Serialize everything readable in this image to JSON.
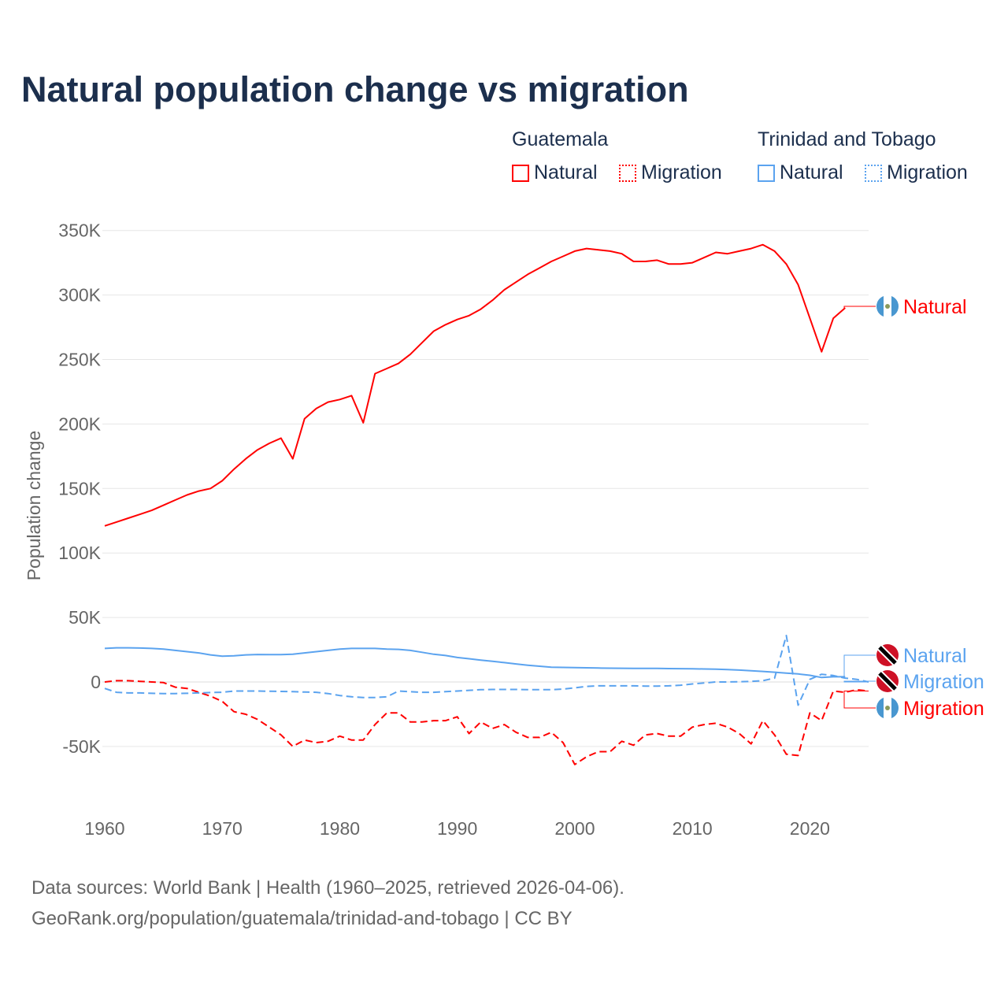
{
  "chart_data": {
    "type": "line",
    "title": "Natural population change vs migration",
    "xlabel": "",
    "ylabel": "Population change",
    "xlim": [
      1960,
      2025
    ],
    "ylim": [
      -100000,
      350000
    ],
    "x_ticks": [
      1960,
      1970,
      1980,
      1990,
      2000,
      2010,
      2020
    ],
    "x_tick_labels": [
      "1960",
      "1970",
      "1980",
      "1990",
      "2000",
      "2010",
      "2020"
    ],
    "y_ticks": [
      -50000,
      0,
      50000,
      100000,
      150000,
      200000,
      250000,
      300000,
      350000
    ],
    "y_tick_labels": [
      "-50K",
      "0",
      "50K",
      "100K",
      "150K",
      "200K",
      "250K",
      "300K",
      "350K"
    ],
    "grid": true,
    "legend": {
      "placement": "top-right",
      "groups": [
        {
          "name": "Guatemala",
          "items": [
            "Natural",
            "Migration"
          ]
        },
        {
          "name": "Trinidad and Tobago",
          "items": [
            "Natural",
            "Migration"
          ]
        }
      ]
    },
    "series": [
      {
        "name": "Guatemala Natural",
        "country": "Guatemala",
        "kind": "Natural",
        "color": "#ff0000",
        "dash": false,
        "start": 1960,
        "values": [
          121000,
          124000,
          127000,
          130000,
          133000,
          137000,
          141000,
          145000,
          148000,
          150000,
          156000,
          165000,
          173000,
          180000,
          185000,
          189000,
          173000,
          204000,
          212000,
          217000,
          219000,
          222000,
          201000,
          239000,
          243000,
          247000,
          254000,
          263000,
          272000,
          277000,
          281000,
          284000,
          289000,
          296000,
          304000,
          310000,
          316000,
          321000,
          326000,
          330000,
          334000,
          336000,
          335000,
          334000,
          332000,
          326000,
          326000,
          327000,
          324000,
          324000,
          325000,
          329000,
          333000,
          332000,
          334000,
          336000,
          339000,
          334000,
          324000,
          308000,
          282000,
          256000,
          282000,
          290000
        ]
      },
      {
        "name": "Guatemala Migration",
        "country": "Guatemala",
        "kind": "Migration",
        "color": "#ff0000",
        "dash": true,
        "start": 1960,
        "values": [
          0,
          1000,
          1000,
          500,
          0,
          -500,
          -4000,
          -5000,
          -8000,
          -11000,
          -15000,
          -23000,
          -25000,
          -29000,
          -35000,
          -41000,
          -50000,
          -45000,
          -47000,
          -46000,
          -42000,
          -45000,
          -45000,
          -33000,
          -24000,
          -24000,
          -31000,
          -31000,
          -30000,
          -30000,
          -27000,
          -40000,
          -31000,
          -36000,
          -33000,
          -39000,
          -43000,
          -43000,
          -39000,
          -47000,
          -64000,
          -58000,
          -54000,
          -54000,
          -46000,
          -49000,
          -41000,
          -40000,
          -42000,
          -42000,
          -35000,
          -33000,
          -32000,
          -35000,
          -40000,
          -48000,
          -30000,
          -41000,
          -56000,
          -57000,
          -24000,
          -30000,
          -7000,
          -8000,
          -6000,
          -7000
        ]
      },
      {
        "name": "Trinidad and Tobago Natural",
        "country": "Trinidad and Tobago",
        "kind": "Natural",
        "color": "#5ba3ef",
        "dash": false,
        "start": 1960,
        "values": [
          26000,
          26500,
          26500,
          26300,
          26000,
          25500,
          24500,
          23500,
          22500,
          21000,
          20000,
          20300,
          21000,
          21300,
          21200,
          21200,
          21500,
          22500,
          23500,
          24500,
          25500,
          26000,
          26000,
          26000,
          25500,
          25300,
          24500,
          23000,
          21500,
          20500,
          19000,
          18000,
          17000,
          16000,
          15000,
          14000,
          13000,
          12200,
          11500,
          11300,
          11200,
          11000,
          10800,
          10700,
          10600,
          10500,
          10500,
          10500,
          10400,
          10300,
          10200,
          10100,
          9900,
          9600,
          9200,
          8700,
          8200,
          7600,
          6900,
          6200,
          5200,
          3500,
          4000,
          4000
        ]
      },
      {
        "name": "Trinidad and Tobago Migration",
        "country": "Trinidad and Tobago",
        "kind": "Migration",
        "color": "#5ba3ef",
        "dash": true,
        "start": 1960,
        "values": [
          -5000,
          -8000,
          -8500,
          -8500,
          -8800,
          -9000,
          -9000,
          -8800,
          -8500,
          -8200,
          -8000,
          -7000,
          -7000,
          -7000,
          -7200,
          -7300,
          -7500,
          -7800,
          -8000,
          -9000,
          -10500,
          -11500,
          -12000,
          -12000,
          -11500,
          -7000,
          -7500,
          -8000,
          -8000,
          -7500,
          -7000,
          -6500,
          -6000,
          -5800,
          -5800,
          -5800,
          -6000,
          -6000,
          -6000,
          -5500,
          -4500,
          -3500,
          -3000,
          -3000,
          -3000,
          -3000,
          -3200,
          -3200,
          -3000,
          -2500,
          -1500,
          -800,
          0,
          0,
          200,
          500,
          1000,
          3000,
          36000,
          -18000,
          2000,
          6000,
          5000,
          3000,
          2000,
          0
        ]
      }
    ],
    "end_labels": [
      {
        "text": "Natural",
        "country": "Guatemala",
        "color": "#ff0000"
      },
      {
        "text": "Natural",
        "country": "Trinidad and Tobago",
        "color": "#5ba3ef"
      },
      {
        "text": "Migration",
        "country": "Trinidad and Tobago",
        "color": "#5ba3ef"
      },
      {
        "text": "Migration",
        "country": "Guatemala",
        "color": "#ff0000"
      }
    ]
  },
  "source": {
    "line1": "Data sources: World Bank | Health (1960–2025, retrieved 2026-04-06).",
    "line2": "GeoRank.org/population/guatemala/trinidad-and-tobago | CC BY"
  }
}
